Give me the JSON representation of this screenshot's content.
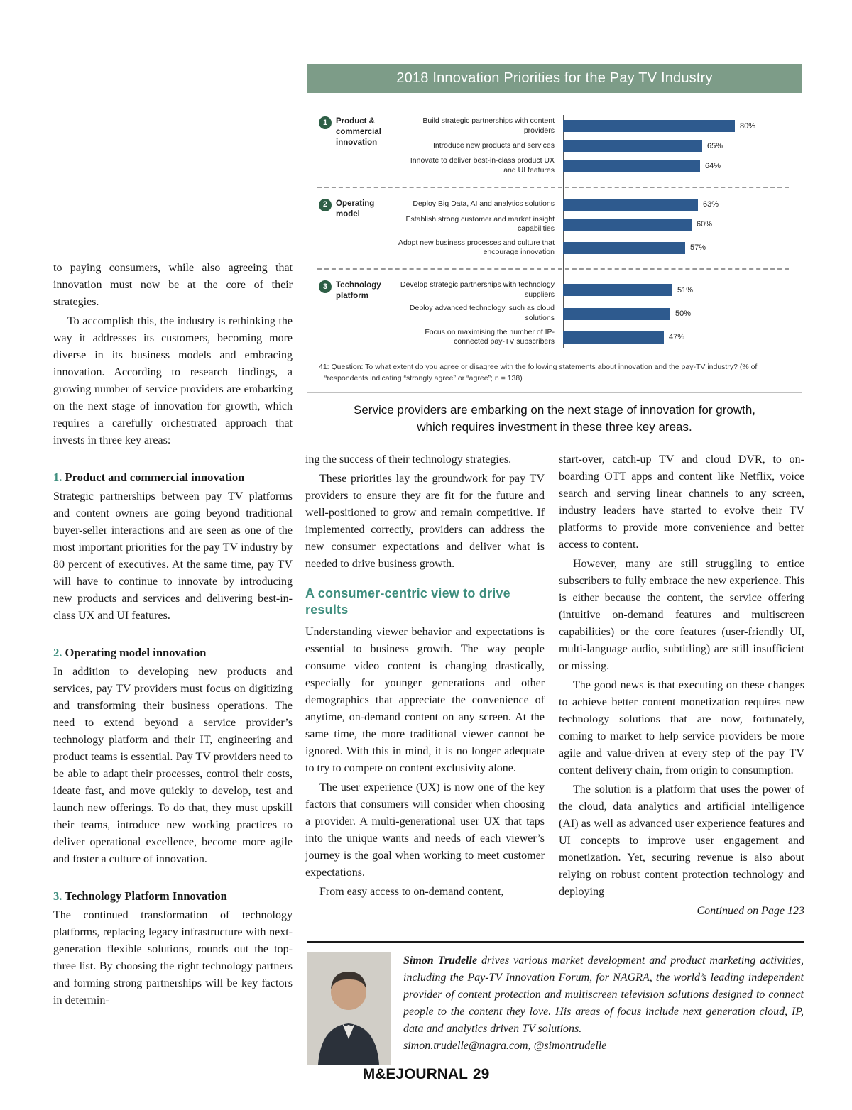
{
  "chart": {
    "title": "2018 Innovation Priorities for the Pay TV Industry",
    "footnote1": "41: Question: To what extent do you agree or disagree with the following statements about innovation and the pay-TV industry? (% of",
    "footnote2": "“respondents indicating “strongly agree” or “agree”; n = 138)",
    "caption1": "Service providers are embarking on the next stage of innovation for growth,",
    "caption2": "which requires investment in these three key areas."
  },
  "chart_data": {
    "type": "bar",
    "orientation": "horizontal",
    "title": "2018 Innovation Priorities for the Pay TV Industry",
    "unit": "%",
    "xlim": [
      0,
      100
    ],
    "bar_color": "#2e5a8e",
    "legend": "none",
    "groups": [
      {
        "number": "1",
        "label": "Product & commercial innovation",
        "items": [
          {
            "label": "Build strategic partnerships with content providers",
            "value": 80
          },
          {
            "label": "Introduce new products and services",
            "value": 65
          },
          {
            "label": "Innovate to deliver best-in-class product UX and UI features",
            "value": 64
          }
        ]
      },
      {
        "number": "2",
        "label": "Operating model",
        "items": [
          {
            "label": "Deploy Big Data, AI and analytics solutions",
            "value": 63
          },
          {
            "label": "Establish strong customer and market insight capabilities",
            "value": 60
          },
          {
            "label": "Adopt new business processes and culture that encourage innovation",
            "value": 57
          }
        ]
      },
      {
        "number": "3",
        "label": "Technology platform",
        "items": [
          {
            "label": "Develop strategic partnerships with technology suppliers",
            "value": 51
          },
          {
            "label": "Deploy advanced technology, such as cloud solutions",
            "value": 50
          },
          {
            "label": "Focus on maximising the number of IP-connected pay-TV subscribers",
            "value": 47
          }
        ]
      }
    ]
  },
  "article": {
    "left": {
      "p1": "to paying consumers, while also agreeing that innovation must now be at the core of their strategies.",
      "p2": "To accomplish this, the industry is rethinking the way it addresses its customers, becoming more diverse in its business models and embracing innovation. According to research findings, a growing number of service providers are embarking on the next stage of innovation for growth, which requires a carefully orchestrated approach that invests in three key areas:",
      "h1_num": "1.",
      "h1_title": "Product and commercial innovation",
      "p3": "Strategic partnerships between pay TV platforms and content owners are going beyond traditional buyer-seller interactions and are seen as one of the most important priorities for the pay TV industry by 80 percent of executives. At the same time, pay TV will have to continue to innovate by introducing new products and services and delivering best-in-class UX and UI features.",
      "h2_num": "2.",
      "h2_title": "Operating model innovation",
      "p4": "In addition to developing new products and services, pay TV providers must focus on digitizing and transforming their business operations. The need to extend beyond a service provider’s technology platform and their IT, engineering and product teams is essential. Pay TV providers need to be able to adapt their processes, control their costs, ideate fast, and move quickly to develop, test and launch new offerings. To do that, they must upskill their teams, introduce new working practices to deliver operational excellence, become more agile and foster a culture of innovation.",
      "h3_num": "3.",
      "h3_title": "Technology Platform Innovation",
      "p5": "The continued transformation of technology platforms, replacing legacy infrastructure with next-generation flexible solutions, rounds out the top-three list. By choosing the right technology partners and forming strong partnerships will be key factors in determin-"
    },
    "middle": {
      "p1": "ing the success of their technology strategies.",
      "p2": "These priorities lay the groundwork for pay TV providers to ensure they are fit for the future and well-positioned to grow and remain competitive. If implemented correctly, providers can address the new consumer expectations and deliver what is needed to drive business growth.",
      "heading": "A consumer-centric view to drive results",
      "p3": "Understanding viewer behavior and expectations is essential to business growth. The way people consume video content is changing drastically, especially for younger generations and other demographics that appreciate the convenience of anytime, on-demand content on any screen. At the same time, the more traditional viewer cannot be ignored. With this in mind, it is no longer adequate to try to compete on content exclusivity alone.",
      "p4": "The user experience (UX) is now one of the key factors that consumers will consider when choosing a provider. A multi-generational user UX that taps into the unique wants and needs of each viewer’s journey is the goal when working to meet customer expectations.",
      "p5": "From easy access to on-demand content,"
    },
    "right": {
      "p1": "start-over, catch-up TV and cloud DVR, to on-boarding OTT apps and content like Netflix, voice search and serving linear channels to any screen, industry leaders have started to evolve their TV platforms to provide more convenience and better access to content.",
      "p2": "However, many are still struggling to entice subscribers to fully embrace the new experience. This is either because the content, the service offering (intuitive on-demand features and multiscreen capabilities) or the core features (user-friendly UI, multi-language audio, subtitling) are still insufficient or missing.",
      "p3": "The good news is that executing on these changes to achieve better content monetization requires new technology solutions that are now, fortunately, coming to market to help service providers be more agile and value-driven at every step of the pay TV content delivery chain, from origin to consumption.",
      "p4": "The solution is a platform that uses the power of the cloud, data analytics and artificial intelligence (AI) as well as advanced user experience features and UI concepts to improve user engagement and monetization. Yet, securing revenue is also about relying on robust content protection technology and deploying",
      "continued": "Continued on Page 123"
    }
  },
  "bio": {
    "name": "Simon Trudelle",
    "text": "drives various market development and product marketing activities, including the Pay-TV Innovation Forum, for NAGRA, the world’s leading independent provider of content protection and multiscreen television solutions designed to connect people to the content they love. His areas of focus include next generation cloud, IP, data and analytics driven TV solutions.",
    "email": "simon.trudelle@nagra.com",
    "suffix": ", @simontrudelle"
  },
  "footer": {
    "brand": "M&EJOURNAL",
    "page": "29"
  },
  "colors": {
    "header_green": "#7d9c88",
    "bar_blue": "#2e5a8e",
    "accent_teal": "#3f8e7e",
    "badge_green": "#2e5f46"
  }
}
